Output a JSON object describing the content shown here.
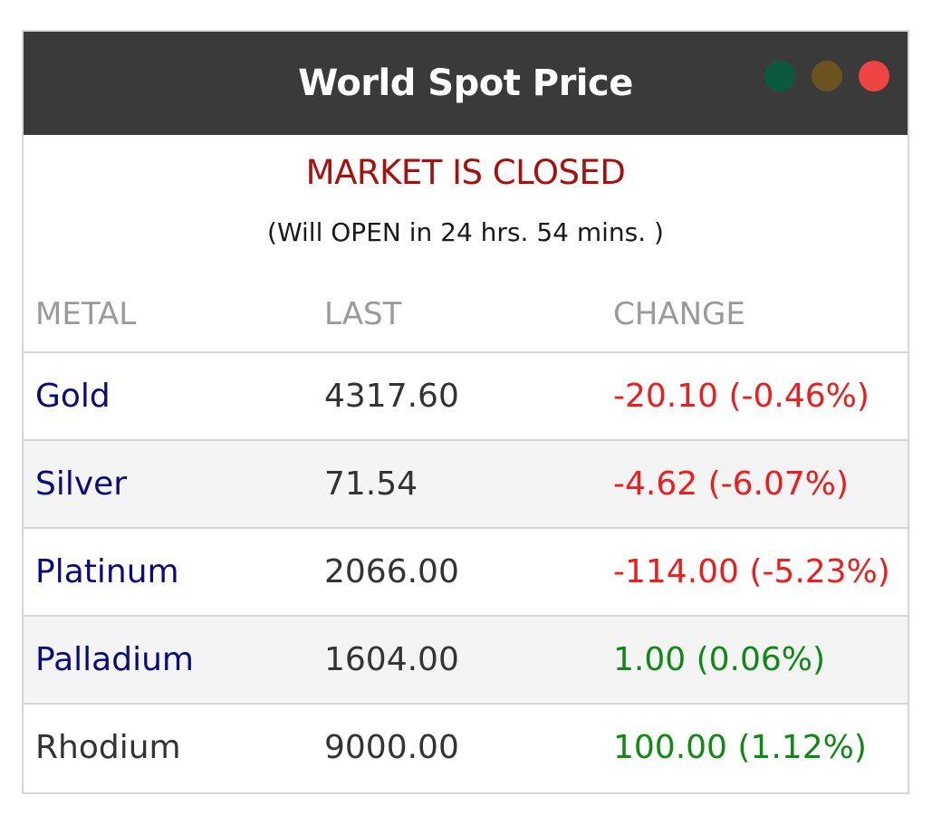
{
  "widget": {
    "title": "World Spot Price",
    "window_controls": [
      {
        "name": "green-dot-icon",
        "color": "#0b5a3f"
      },
      {
        "name": "brown-dot-icon",
        "color": "#6b5320"
      },
      {
        "name": "red-dot-icon",
        "color": "#ee4444"
      }
    ],
    "header_bg": "#3a3a3a"
  },
  "market": {
    "status": "MARKET IS CLOSED",
    "status_color": "#a80f0f",
    "next_open": "(Will OPEN in 24 hrs. 54 mins. )"
  },
  "table": {
    "columns": [
      "METAL",
      "LAST",
      "CHANGE"
    ],
    "rows": [
      {
        "metal": "Gold",
        "last": "4317.60",
        "change": "-20.10 (-0.46%)",
        "metal_color": "#0a0a80",
        "change_color": "#ee1c1c"
      },
      {
        "metal": "Silver",
        "last": "71.54",
        "change": "-4.62 (-6.07%)",
        "metal_color": "#0a0a80",
        "change_color": "#ee1c1c"
      },
      {
        "metal": "Platinum",
        "last": "2066.00",
        "change": "-114.00 (-5.23%)",
        "metal_color": "#0a0a80",
        "change_color": "#ee1c1c"
      },
      {
        "metal": "Palladium",
        "last": "1604.00",
        "change": "1.00 (0.06%)",
        "metal_color": "#0a0a80",
        "change_color": "#0e8a14"
      },
      {
        "metal": "Rhodium",
        "last": "9000.00",
        "change": "100.00 (1.12%)",
        "metal_color": "#333333",
        "change_color": "#0e8a14"
      }
    ]
  }
}
